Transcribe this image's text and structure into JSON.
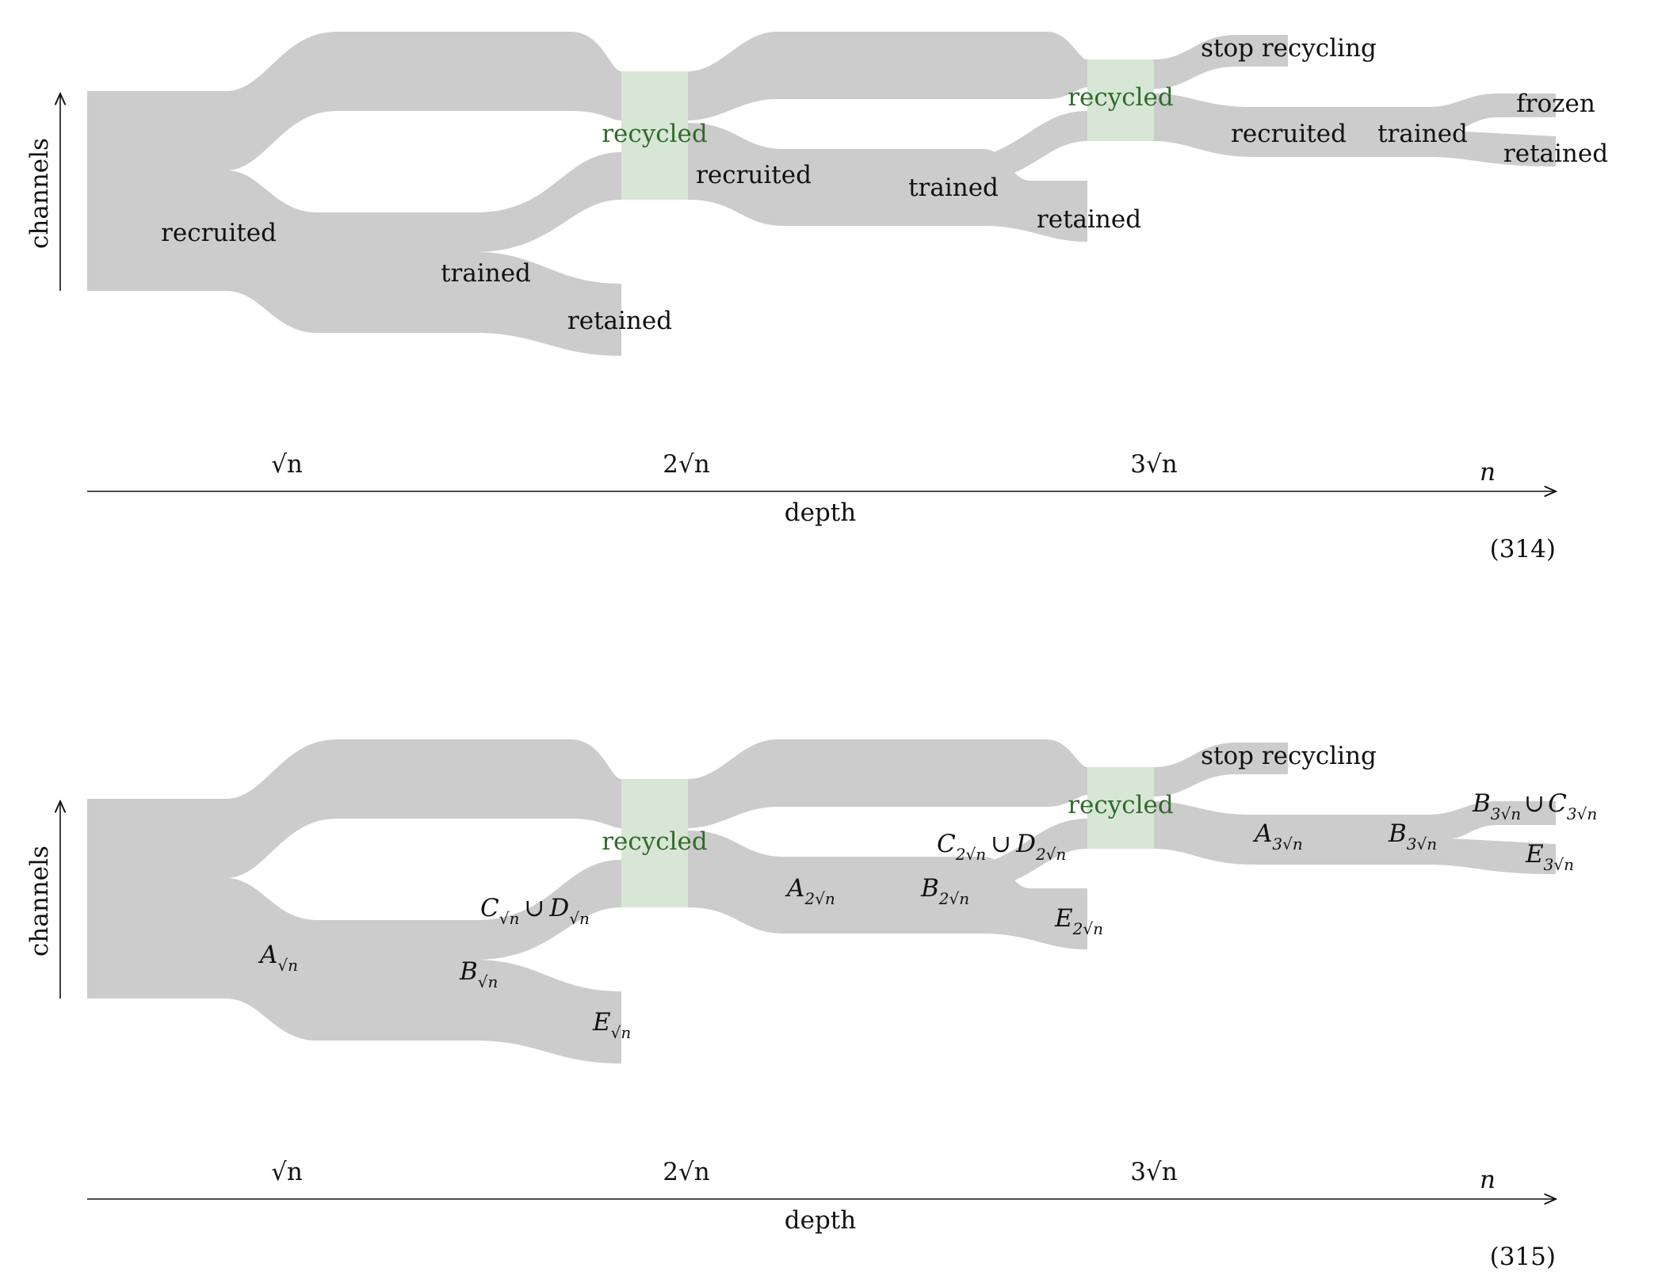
{
  "colors": {
    "flow": "#cccccc",
    "recycled_box": "#d8e6d6",
    "recycled_text": "#2f6b2a",
    "axis": "#111111"
  },
  "diagrams": [
    {
      "equation_number": "(314)",
      "y_axis_label": "channels",
      "x_axis_label": "depth",
      "ticks": [
        "√n",
        "2√n",
        "3√n",
        "n"
      ],
      "labels": {
        "recruited_1": "recruited",
        "trained_1": "trained",
        "retained_1": "retained",
        "recycled_1": "recycled",
        "recruited_2": "recruited",
        "trained_2": "trained",
        "retained_2": "retained",
        "recycled_2": "recycled",
        "stop": "stop recycling",
        "recruited_3": "recruited",
        "trained_3": "trained",
        "frozen": "frozen",
        "retained_3": "retained"
      }
    },
    {
      "equation_number": "(315)",
      "y_axis_label": "channels",
      "x_axis_label": "depth",
      "ticks": [
        "√n",
        "2√n",
        "3√n",
        "n"
      ],
      "labels": {
        "recycled_1": "recycled",
        "recycled_2": "recycled",
        "stop": "stop recycling",
        "A": "A",
        "B": "B",
        "C": "C",
        "D": "D",
        "E": "E",
        "union": "∪",
        "sqrt_n": "√n",
        "two_sqrt_n": "2√n",
        "three_sqrt_n": "3√n"
      }
    }
  ]
}
